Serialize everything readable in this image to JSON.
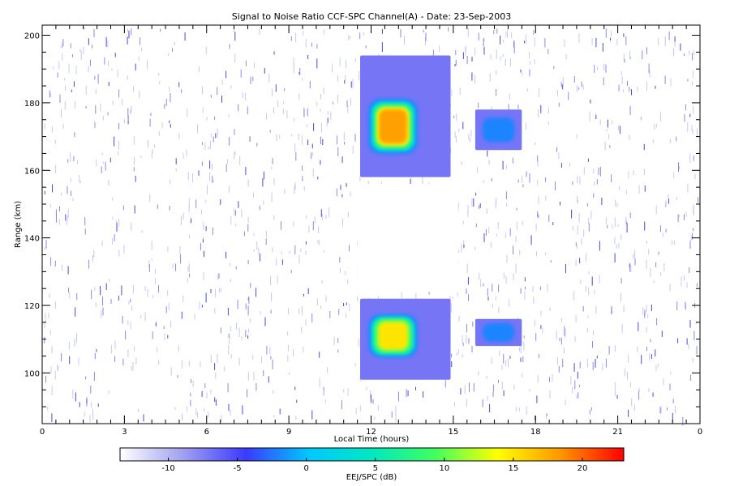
{
  "chart_data": {
    "type": "heatmap",
    "title": "Signal to Noise Ratio CCF-SPC Channel(A) - Date: 23-Sep-2003",
    "xlabel": "Local Time (hours)",
    "ylabel": "Range (km)",
    "xlim": [
      0,
      24
    ],
    "ylim": [
      85,
      203
    ],
    "x_tick_labels": [
      "0",
      "3",
      "6",
      "9",
      "12",
      "15",
      "18",
      "21",
      "0"
    ],
    "y_ticks": [
      100,
      120,
      140,
      160,
      180,
      200
    ],
    "colorbar": {
      "label": "EEJ/SPC (dB)",
      "range": [
        -13.5,
        23
      ],
      "ticks": [
        -10,
        -5,
        0,
        5,
        10,
        15,
        20
      ],
      "colors": [
        "#ffffff",
        "#a0a0f0",
        "#3a3aff",
        "#00c8ff",
        "#00e8c0",
        "#40ff60",
        "#ffff00",
        "#ff9600",
        "#ff0000"
      ]
    },
    "echo_regions": [
      {
        "x": [
          11.6,
          14.9
        ],
        "y": [
          158,
          194
        ],
        "core_x": [
          11.8,
          13.8
        ],
        "core_y": [
          164,
          182
        ],
        "peak_db": 18
      },
      {
        "x": [
          15.8,
          17.5
        ],
        "y": [
          166,
          178
        ],
        "core_x": [
          16.0,
          17.3
        ],
        "core_y": [
          168,
          176
        ],
        "peak_db": -3
      },
      {
        "x": [
          11.6,
          14.9
        ],
        "y": [
          98,
          122
        ],
        "core_x": [
          11.8,
          13.8
        ],
        "core_y": [
          104,
          118
        ],
        "peak_db": 15
      },
      {
        "x": [
          15.8,
          17.5
        ],
        "y": [
          108,
          116
        ],
        "core_x": [
          16.0,
          17.3
        ],
        "core_y": [
          109,
          115
        ],
        "peak_db": -3
      }
    ],
    "grid": false,
    "legend": "colorbar-bottom"
  }
}
